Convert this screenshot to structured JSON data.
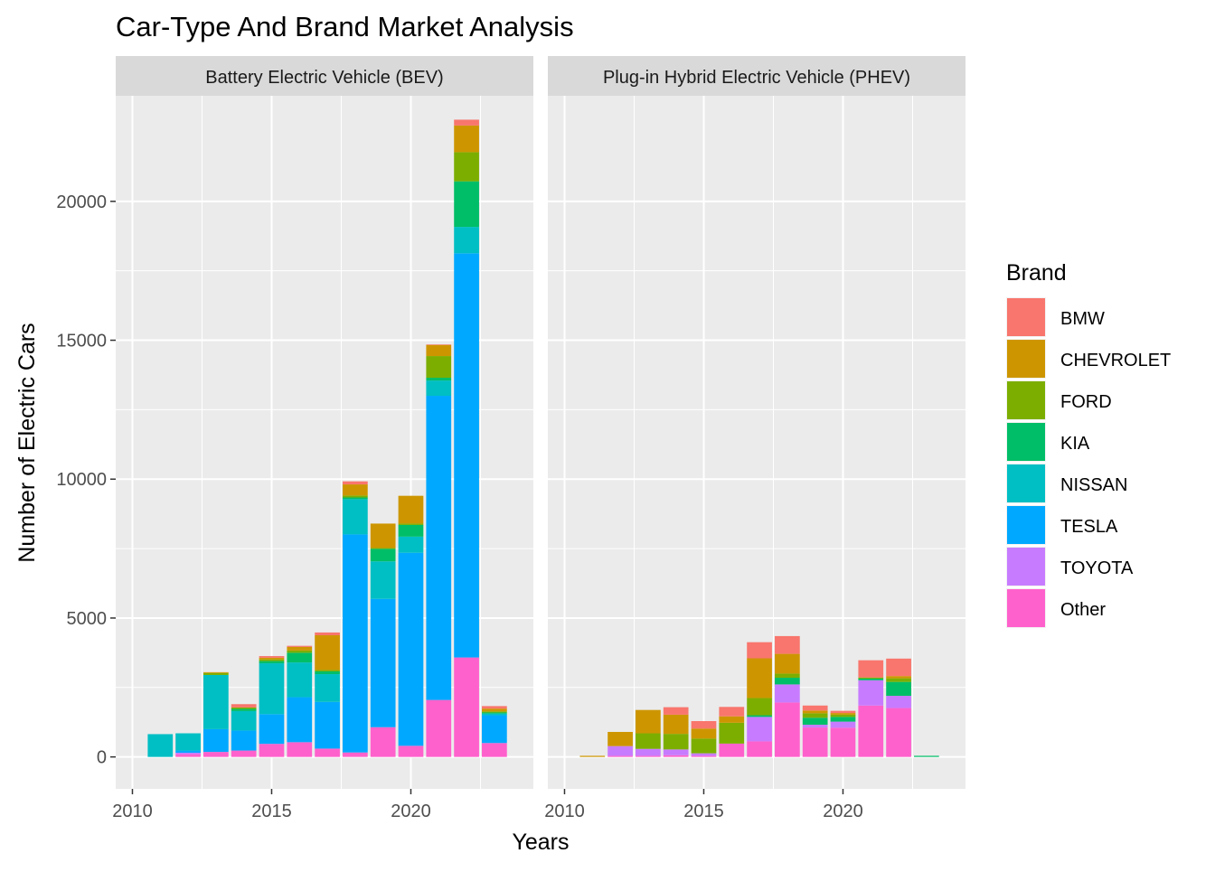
{
  "chart_data": {
    "type": "bar",
    "stacked": true,
    "title": "Car-Type And Brand Market Analysis",
    "xlabel": "Years",
    "ylabel": "Number of Electric Cars",
    "xlim": [
      2009.4,
      2024.4
    ],
    "ylim": [
      -1150,
      23800
    ],
    "x_ticks": [
      2010,
      2015,
      2020
    ],
    "y_ticks": [
      0,
      5000,
      10000,
      15000,
      20000
    ],
    "y_tick_labels": [
      "0",
      "5000",
      "10000",
      "15000",
      "20000"
    ],
    "grid": true,
    "legend": {
      "title": "Brand",
      "position": "right",
      "entries": [
        {
          "name": "BMW",
          "color": "#F8766D"
        },
        {
          "name": "CHEVROLET",
          "color": "#CD9600"
        },
        {
          "name": "FORD",
          "color": "#7CAE00"
        },
        {
          "name": "KIA",
          "color": "#00BE67"
        },
        {
          "name": "NISSAN",
          "color": "#00BFC4"
        },
        {
          "name": "TESLA",
          "color": "#00A9FF"
        },
        {
          "name": "TOYOTA",
          "color": "#C77CFF"
        },
        {
          "name": "Other",
          "color": "#FF61CC"
        }
      ]
    },
    "stack_order": [
      "Other",
      "TOYOTA",
      "TESLA",
      "NISSAN",
      "KIA",
      "FORD",
      "CHEVROLET",
      "BMW"
    ],
    "panels": [
      {
        "label": "Battery Electric Vehicle (BEV)",
        "bars": [
          {
            "year": 2011,
            "values": {
              "Other": 0,
              "TOYOTA": 0,
              "TESLA": 0,
              "NISSAN": 820,
              "KIA": 0,
              "FORD": 0,
              "CHEVROLET": 0,
              "BMW": 0
            }
          },
          {
            "year": 2012,
            "values": {
              "Other": 100,
              "TOYOTA": 50,
              "TESLA": 80,
              "NISSAN": 620,
              "KIA": 0,
              "FORD": 0,
              "CHEVROLET": 0,
              "BMW": 0
            }
          },
          {
            "year": 2013,
            "values": {
              "Other": 180,
              "TOYOTA": 0,
              "TESLA": 820,
              "NISSAN": 1950,
              "KIA": 0,
              "FORD": 70,
              "CHEVROLET": 30,
              "BMW": 0
            }
          },
          {
            "year": 2014,
            "values": {
              "Other": 230,
              "TOYOTA": 0,
              "TESLA": 720,
              "NISSAN": 700,
              "KIA": 80,
              "FORD": 50,
              "CHEVROLET": 0,
              "BMW": 120
            }
          },
          {
            "year": 2015,
            "values": {
              "Other": 470,
              "TOYOTA": 0,
              "TESLA": 1070,
              "NISSAN": 1830,
              "KIA": 80,
              "FORD": 60,
              "CHEVROLET": 60,
              "BMW": 60
            }
          },
          {
            "year": 2016,
            "values": {
              "Other": 530,
              "TOYOTA": 0,
              "TESLA": 1620,
              "NISSAN": 1250,
              "KIA": 350,
              "FORD": 80,
              "CHEVROLET": 130,
              "BMW": 40
            }
          },
          {
            "year": 2017,
            "values": {
              "Other": 300,
              "TOYOTA": 0,
              "TESLA": 1680,
              "NISSAN": 1000,
              "KIA": 100,
              "FORD": 50,
              "CHEVROLET": 1250,
              "BMW": 100
            }
          },
          {
            "year": 2018,
            "values": {
              "Other": 160,
              "TOYOTA": 0,
              "TESLA": 7850,
              "NISSAN": 1270,
              "KIA": 60,
              "FORD": 70,
              "CHEVROLET": 400,
              "BMW": 110
            }
          },
          {
            "year": 2019,
            "values": {
              "Other": 1070,
              "TOYOTA": 0,
              "TESLA": 4620,
              "NISSAN": 1350,
              "KIA": 450,
              "FORD": 30,
              "CHEVROLET": 880,
              "BMW": 0
            }
          },
          {
            "year": 2020,
            "values": {
              "Other": 400,
              "TOYOTA": 0,
              "TESLA": 6950,
              "NISSAN": 580,
              "KIA": 420,
              "FORD": 50,
              "CHEVROLET": 1000,
              "BMW": 0
            }
          },
          {
            "year": 2021,
            "values": {
              "Other": 2050,
              "TOYOTA": 0,
              "TESLA": 10950,
              "NISSAN": 550,
              "KIA": 100,
              "FORD": 780,
              "CHEVROLET": 400,
              "BMW": 20
            }
          },
          {
            "year": 2022,
            "values": {
              "Other": 3580,
              "TOYOTA": 0,
              "TESLA": 14550,
              "NISSAN": 950,
              "KIA": 1640,
              "FORD": 1050,
              "CHEVROLET": 960,
              "BMW": 210
            }
          },
          {
            "year": 2023,
            "values": {
              "Other": 500,
              "TOYOTA": 0,
              "TESLA": 1000,
              "NISSAN": 60,
              "KIA": 40,
              "FORD": 40,
              "CHEVROLET": 100,
              "BMW": 90
            }
          }
        ]
      },
      {
        "label": "Plug-in Hybrid Electric Vehicle (PHEV)",
        "bars": [
          {
            "year": 2011,
            "values": {
              "Other": 0,
              "TOYOTA": 0,
              "TESLA": 0,
              "NISSAN": 0,
              "KIA": 0,
              "FORD": 0,
              "CHEVROLET": 40,
              "BMW": 0
            }
          },
          {
            "year": 2012,
            "values": {
              "Other": 40,
              "TOYOTA": 350,
              "TESLA": 0,
              "NISSAN": 0,
              "KIA": 0,
              "FORD": 0,
              "CHEVROLET": 510,
              "BMW": 0
            }
          },
          {
            "year": 2013,
            "values": {
              "Other": 40,
              "TOYOTA": 250,
              "TESLA": 0,
              "NISSAN": 0,
              "KIA": 0,
              "FORD": 560,
              "CHEVROLET": 840,
              "BMW": 0
            }
          },
          {
            "year": 2014,
            "values": {
              "Other": 60,
              "TOYOTA": 210,
              "TESLA": 0,
              "NISSAN": 0,
              "KIA": 0,
              "FORD": 560,
              "CHEVROLET": 690,
              "BMW": 270
            }
          },
          {
            "year": 2015,
            "values": {
              "Other": 40,
              "TOYOTA": 90,
              "TESLA": 0,
              "NISSAN": 0,
              "KIA": 0,
              "FORD": 530,
              "CHEVROLET": 360,
              "BMW": 270
            }
          },
          {
            "year": 2016,
            "values": {
              "Other": 480,
              "TOYOTA": 0,
              "TESLA": 0,
              "NISSAN": 0,
              "KIA": 0,
              "FORD": 750,
              "CHEVROLET": 230,
              "BMW": 340
            }
          },
          {
            "year": 2017,
            "values": {
              "Other": 560,
              "TOYOTA": 880,
              "TESLA": 0,
              "NISSAN": 0,
              "KIA": 60,
              "FORD": 620,
              "CHEVROLET": 1430,
              "BMW": 580
            }
          },
          {
            "year": 2018,
            "values": {
              "Other": 1960,
              "TOYOTA": 650,
              "TESLA": 0,
              "NISSAN": 0,
              "KIA": 240,
              "FORD": 150,
              "CHEVROLET": 710,
              "BMW": 640
            }
          },
          {
            "year": 2019,
            "values": {
              "Other": 1060,
              "TOYOTA": 100,
              "TESLA": 0,
              "NISSAN": 0,
              "KIA": 250,
              "FORD": 160,
              "CHEVROLET": 100,
              "BMW": 180
            }
          },
          {
            "year": 2020,
            "values": {
              "Other": 1050,
              "TOYOTA": 220,
              "TESLA": 0,
              "NISSAN": 0,
              "KIA": 170,
              "FORD": 80,
              "CHEVROLET": 60,
              "BMW": 80
            }
          },
          {
            "year": 2021,
            "values": {
              "Other": 1850,
              "TOYOTA": 910,
              "TESLA": 0,
              "NISSAN": 0,
              "KIA": 60,
              "FORD": 40,
              "CHEVROLET": 0,
              "BMW": 620
            }
          },
          {
            "year": 2022,
            "values": {
              "Other": 1760,
              "TOYOTA": 440,
              "TESLA": 0,
              "NISSAN": 0,
              "KIA": 500,
              "FORD": 130,
              "CHEVROLET": 80,
              "BMW": 630
            }
          },
          {
            "year": 2023,
            "values": {
              "Other": 0,
              "TOYOTA": 0,
              "TESLA": 0,
              "NISSAN": 0,
              "KIA": 40,
              "FORD": 0,
              "CHEVROLET": 0,
              "BMW": 0
            }
          }
        ]
      }
    ]
  }
}
